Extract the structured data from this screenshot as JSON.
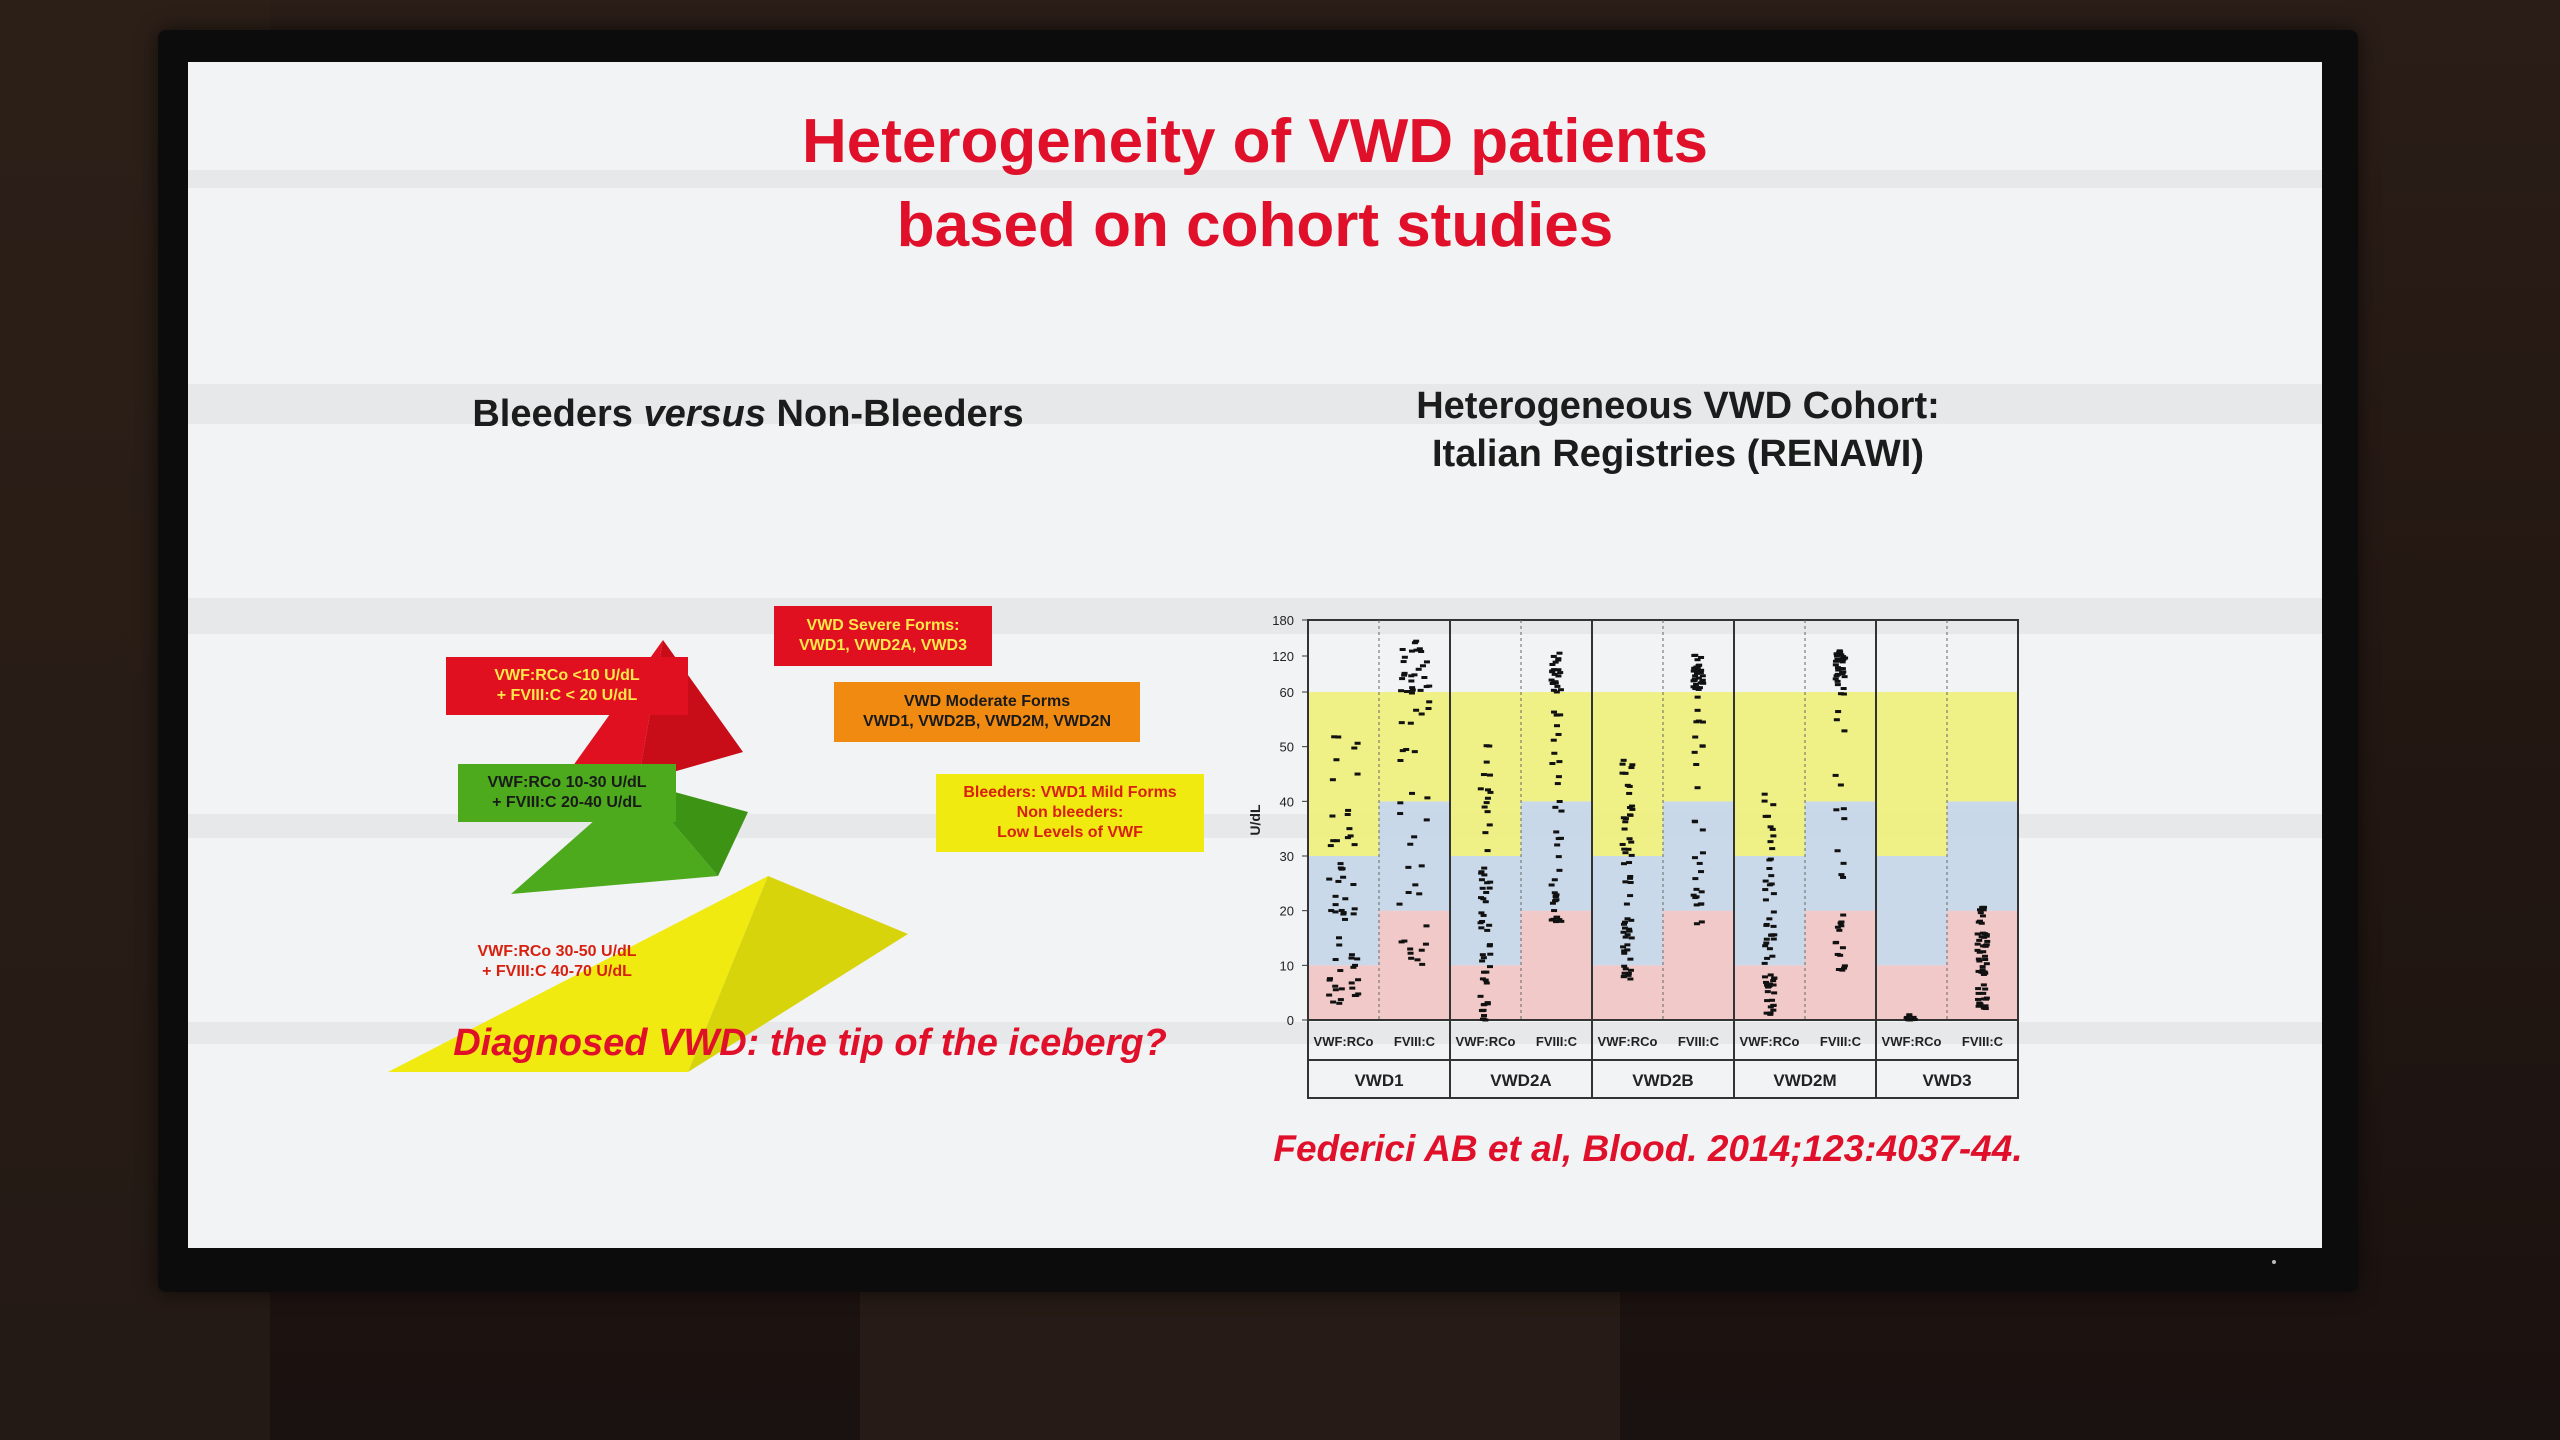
{
  "slide": {
    "title_line1": "Heterogeneity of VWD patients",
    "title_line2": "based on cohort studies"
  },
  "left": {
    "heading_a": "Bleeders ",
    "heading_b": "versus",
    "heading_c": " Non-Bleeders",
    "tag_red": [
      "VWF:RCo <10 U/dL",
      "+ FVIII:C < 20 U/dL"
    ],
    "tag_green": [
      "VWF:RCo 10-30 U/dL",
      "+ FVIII:C 20-40 U/dL"
    ],
    "tag_yellow": [
      "VWF:RCo 30-50 U/dL",
      "+ FVIII:C 40-70 U/dL"
    ],
    "box_severe": [
      "VWD Severe Forms:",
      "VWD1, VWD2A, VWD3"
    ],
    "box_moderate": [
      "VWD Moderate Forms",
      "VWD1, VWD2B, VWD2M, VWD2N"
    ],
    "box_mild": [
      "Bleeders: VWD1 Mild Forms",
      "Non bleeders:",
      "Low Levels of VWF"
    ],
    "iceberg": "Diagnosed VWD: the tip of the iceberg?",
    "colors": {
      "red": "#e01020",
      "green": "#4caa1c",
      "yellow": "#f0ea10",
      "orange": "#f08a10",
      "text_red": "#e0102a"
    }
  },
  "right": {
    "heading_line1": "Heterogeneous VWD Cohort:",
    "heading_line2": "Italian Registries (RENAWI)"
  },
  "chart_data": {
    "type": "scatter",
    "ylabel": "U/dL",
    "yticks": [
      "0",
      "10",
      "20",
      "30",
      "40",
      "50",
      "60",
      "120",
      "180"
    ],
    "groups": [
      "VWD1",
      "VWD2A",
      "VWD2B",
      "VWD2M",
      "VWD3"
    ],
    "columns": [
      "VWF:RCo",
      "FVIII:C"
    ],
    "bands": [
      {
        "name": "red",
        "color": "#f2c4c4",
        "range": [
          0,
          10
        ]
      },
      {
        "name": "blue",
        "color": "#c4d6e8",
        "range": [
          10,
          30
        ]
      },
      {
        "name": "yellow",
        "color": "#eef07a",
        "range": [
          30,
          60
        ]
      }
    ],
    "spread": [
      {
        "group": "VWD1",
        "column": "VWF:RCo",
        "min": 3,
        "max": 55
      },
      {
        "group": "VWD1",
        "column": "FVIII:C",
        "min": 10,
        "max": 150
      },
      {
        "group": "VWD2A",
        "column": "VWF:RCo",
        "min": 0,
        "max": 53
      },
      {
        "group": "VWD2A",
        "column": "FVIII:C",
        "min": 18,
        "max": 130
      },
      {
        "group": "VWD2B",
        "column": "VWF:RCo",
        "min": 7,
        "max": 48
      },
      {
        "group": "VWD2B",
        "column": "FVIII:C",
        "min": 17,
        "max": 125
      },
      {
        "group": "VWD2M",
        "column": "VWF:RCo",
        "min": 1,
        "max": 42
      },
      {
        "group": "VWD2M",
        "column": "FVIII:C",
        "min": 9,
        "max": 130
      },
      {
        "group": "VWD3",
        "column": "VWF:RCo",
        "min": 0,
        "max": 1
      },
      {
        "group": "VWD3",
        "column": "FVIII:C",
        "min": 2,
        "max": 21
      }
    ]
  },
  "citation": "Federici AB et al, Blood. 2014;123:4037-44."
}
